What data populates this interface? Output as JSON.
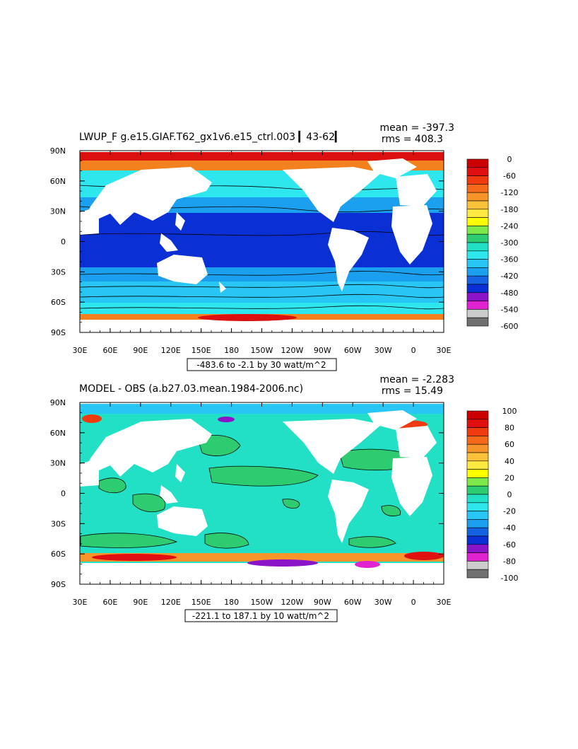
{
  "panels": [
    {
      "id": "top",
      "title": "LWUP_F g.e15.GIAF.T62_gx1v6.e15_ctrl.003 ▎43-62▎",
      "mean_text": "mean = -397.3",
      "rms_text": "rms = 408.3",
      "range_text": "-483.6 to -2.1 by 30 watt/m^2",
      "legend_labels": [
        "0",
        "-60",
        "-120",
        "-180",
        "-240",
        "-300",
        "-360",
        "-420",
        "-480",
        "-540",
        "-600"
      ],
      "colors": [
        "#cc0000",
        "#e01010",
        "#f03a10",
        "#f46a1a",
        "#f7952a",
        "#fbc13a",
        "#ffe940",
        "#ffff00",
        "#7ce84a",
        "#2ecc71",
        "#22e0c6",
        "#2ee6ee",
        "#28c6f5",
        "#1aa0ee",
        "#1463e2",
        "#0a2fd5",
        "#8b13c8",
        "#e022d0",
        "#cccccc",
        "#707070"
      ]
    },
    {
      "id": "bottom",
      "title": "MODEL - OBS (a.b27.03.mean.1984-2006.nc)",
      "mean_text": "mean = -2.283",
      "rms_text": "rms = 15.49",
      "range_text": "-221.1 to 187.1 by 10 watt/m^2",
      "legend_labels": [
        "100",
        "80",
        "60",
        "40",
        "20",
        "0",
        "-20",
        "-40",
        "-60",
        "-80",
        "-100"
      ],
      "colors": [
        "#cc0000",
        "#e01010",
        "#f03a10",
        "#f46a1a",
        "#f7952a",
        "#fbc13a",
        "#ffe940",
        "#ffff00",
        "#7ce84a",
        "#2ecc71",
        "#22e0c6",
        "#2ee6ee",
        "#28c6f5",
        "#1aa0ee",
        "#1463e2",
        "#0a2fd5",
        "#8b13c8",
        "#e022d0",
        "#cccccc",
        "#707070"
      ]
    }
  ],
  "x_ticks": [
    "30E",
    "60E",
    "90E",
    "120E",
    "150E",
    "180",
    "150W",
    "120W",
    "90W",
    "60W",
    "30W",
    "0",
    "30E"
  ],
  "y_ticks": [
    "90N",
    "60N",
    "30N",
    "0",
    "30S",
    "60S",
    "90S"
  ]
}
